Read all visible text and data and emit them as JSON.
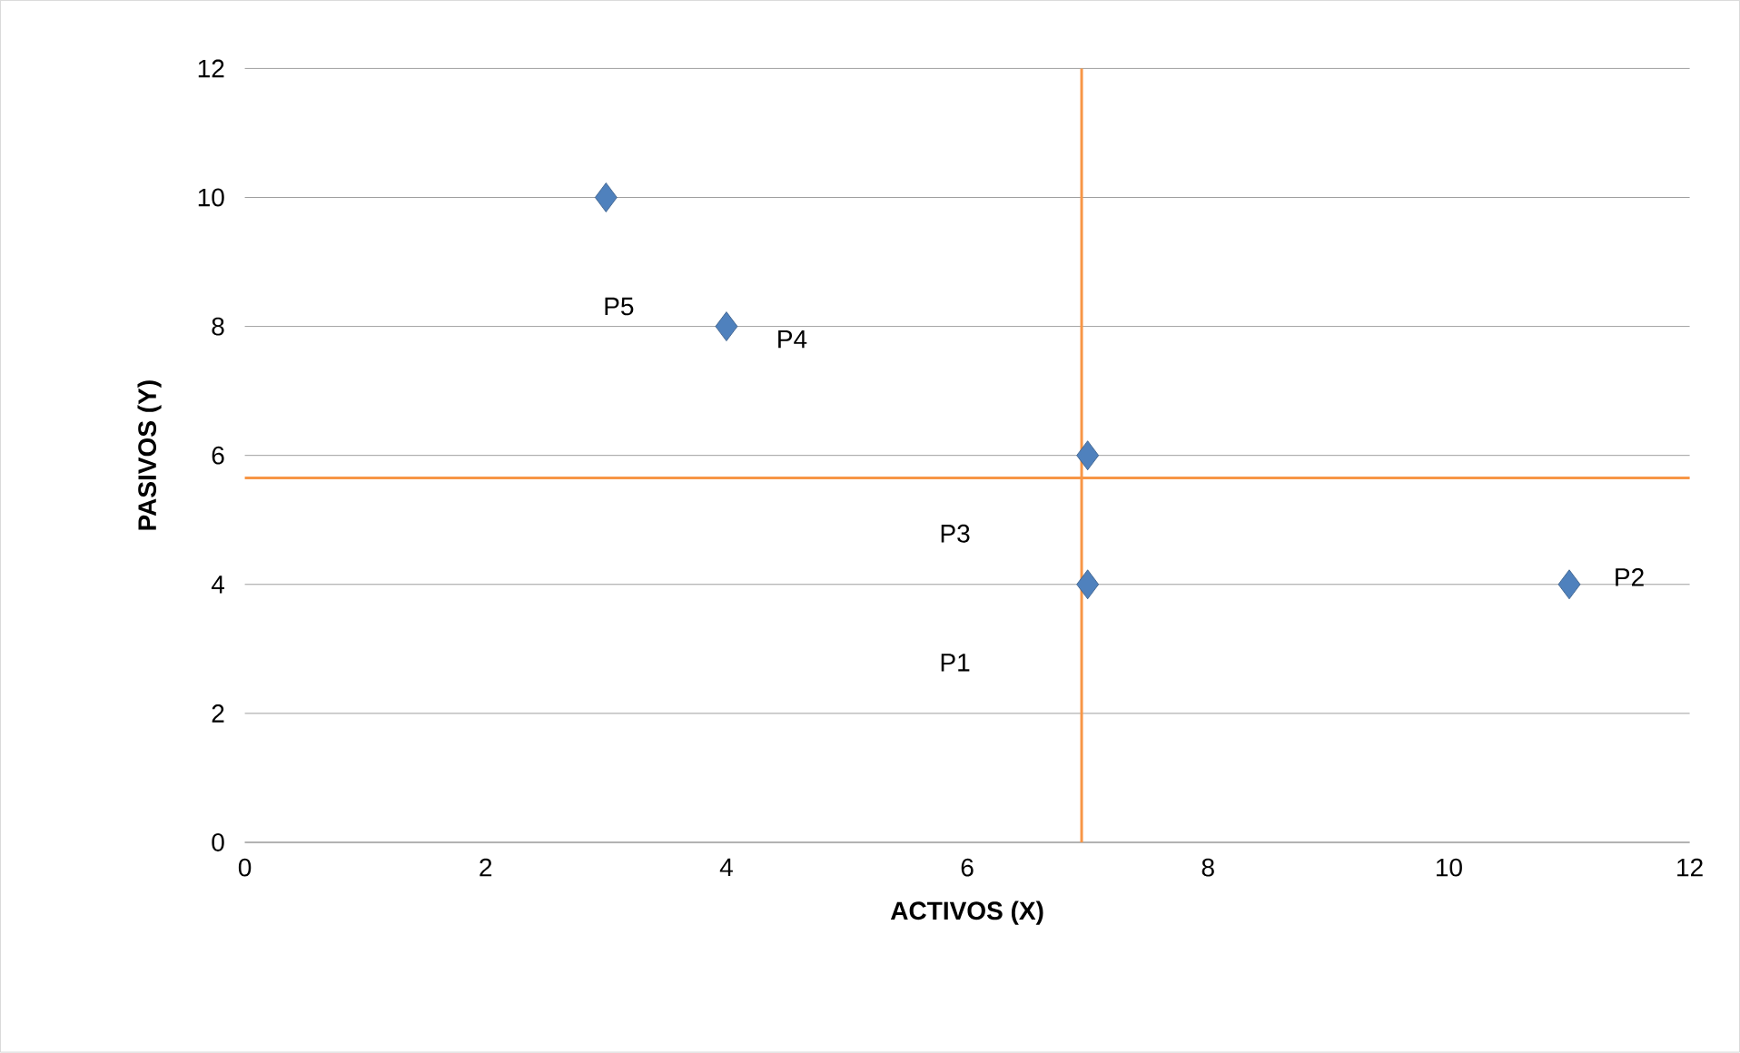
{
  "chart_data": {
    "type": "scatter",
    "xlabel": "ACTIVOS (X)",
    "ylabel": "PASIVOS (Y)",
    "x": [
      7,
      11,
      7,
      4,
      3
    ],
    "series": [
      {
        "color": "#4f81bd",
        "values": [
          4,
          4,
          6,
          8,
          10
        ]
      }
    ],
    "marker": "diamond",
    "xlim": [
      0,
      12
    ],
    "xticks": [
      0,
      2,
      4,
      6,
      8,
      10,
      12
    ],
    "ylim": [
      0,
      12
    ],
    "yticks": [
      0,
      2,
      4,
      6,
      8,
      10,
      12
    ],
    "grid": "y",
    "ref_lines": [
      {
        "axis": "x",
        "value": 6.95,
        "color": "#f79646"
      },
      {
        "axis": "y",
        "value": 5.65,
        "color": "#f79646"
      }
    ],
    "annotations": [
      "P1",
      "P2",
      "P3",
      "P4",
      "P5"
    ]
  }
}
